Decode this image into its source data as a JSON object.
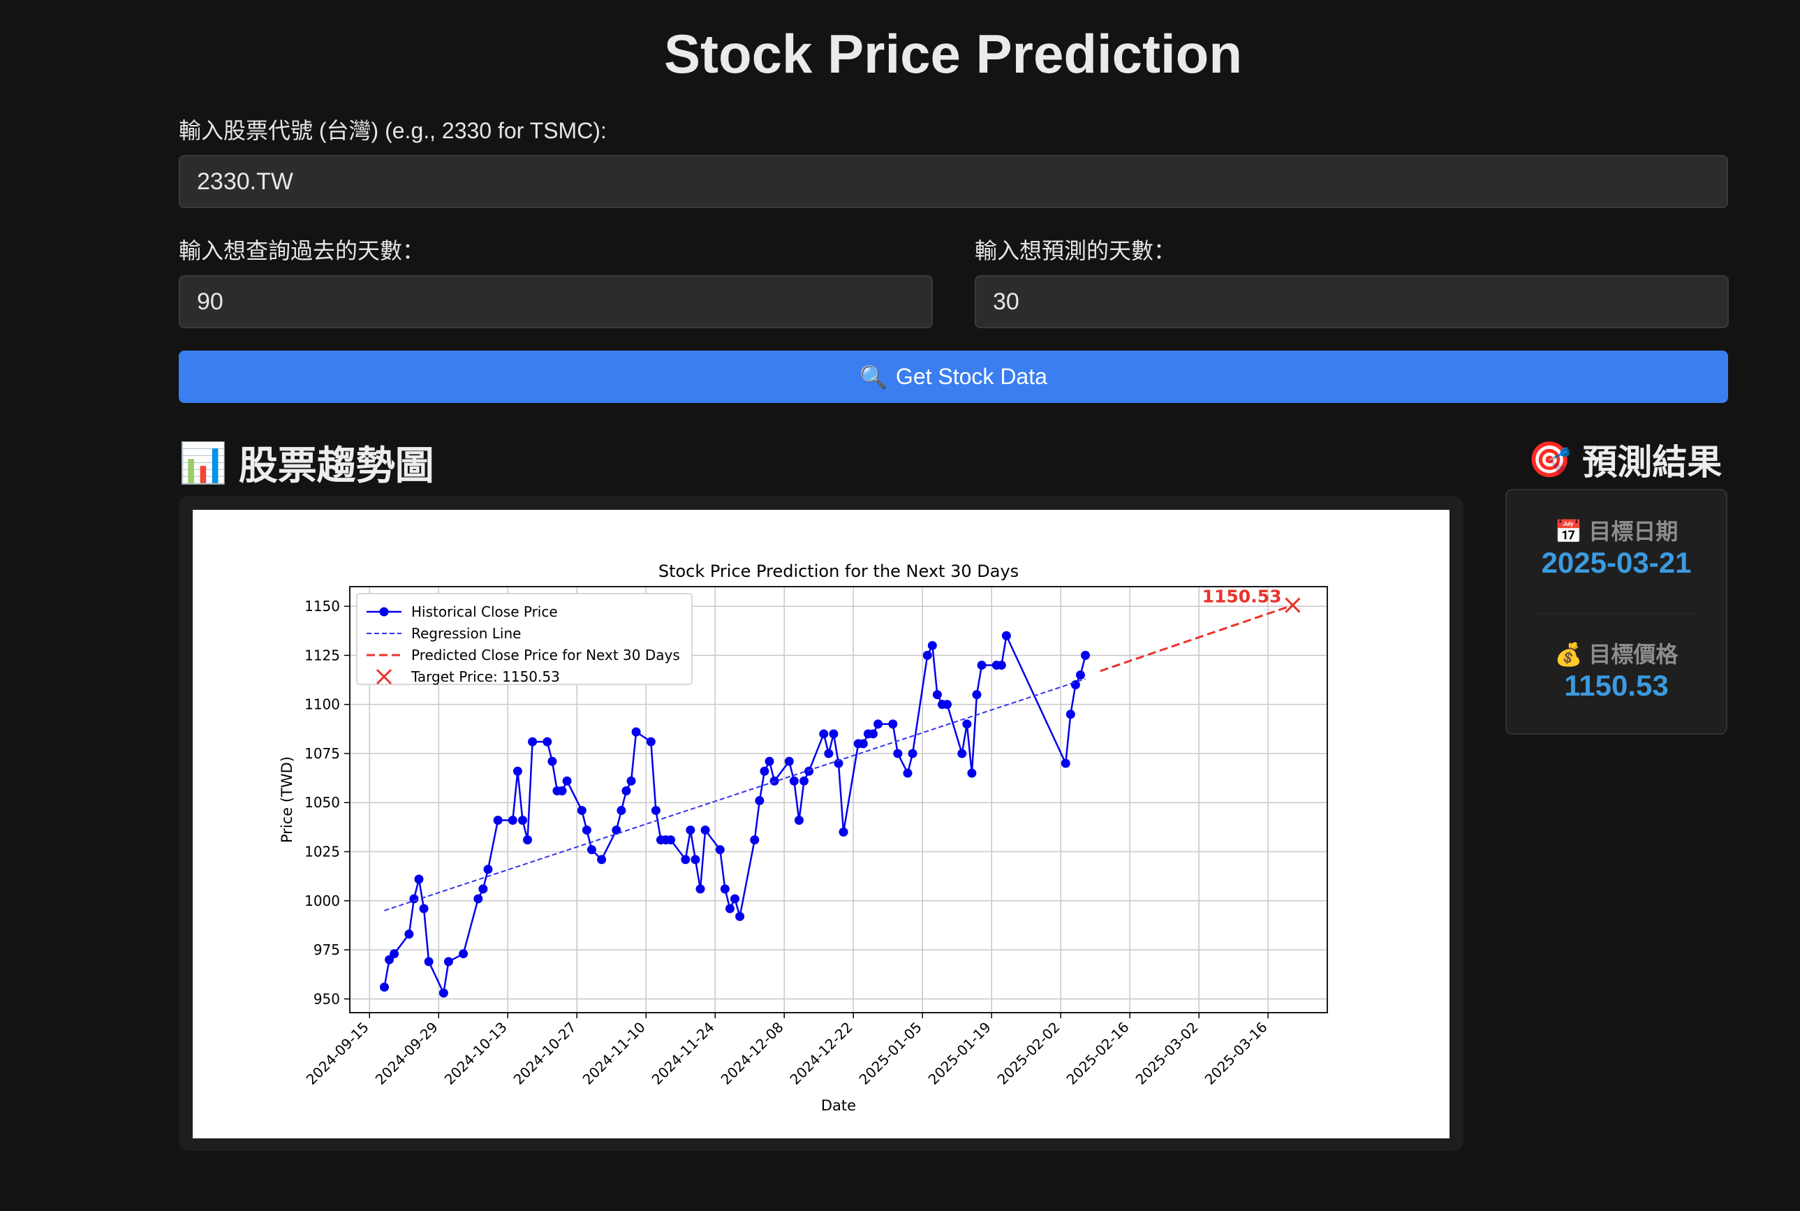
{
  "page": {
    "title": "Stock Price Prediction",
    "ticker_label": "輸入股票代號 (台灣) (e.g., 2330 for TSMC):",
    "ticker_value": "2330.TW",
    "past_days_label": "輸入想查詢過去的天數：",
    "past_days_value": "90",
    "future_days_label": "輸入想預測的天數：",
    "future_days_value": "30",
    "button_icon": "🔍",
    "button_label": "Get Stock Data",
    "chart_heading_icon": "📊",
    "chart_heading": "股票趨勢圖",
    "result_heading_icon": "🎯",
    "result_heading": "預測結果",
    "target_date_icon": "📅",
    "target_date_label": "目標日期",
    "target_date_value": "2025-03-21",
    "target_price_icon": "💰",
    "target_price_label": "目標價格",
    "target_price_value": "1150.53",
    "accent_color": "#3a7ef0",
    "result_value_color": "#3c9be0"
  },
  "chart_data": {
    "type": "line",
    "title": "Stock Price Prediction for the Next 30 Days",
    "xlabel": "Date",
    "ylabel": "Price (TWD)",
    "xlim": [
      "2024-09-11",
      "2025-03-28"
    ],
    "ylim": [
      943,
      1160
    ],
    "x_ticks": [
      "2024-09-15",
      "2024-09-29",
      "2024-10-13",
      "2024-10-27",
      "2024-11-10",
      "2024-11-24",
      "2024-12-08",
      "2024-12-22",
      "2025-01-05",
      "2025-01-19",
      "2025-02-02",
      "2025-02-16",
      "2025-03-02",
      "2025-03-16"
    ],
    "y_ticks": [
      950,
      975,
      1000,
      1025,
      1050,
      1075,
      1100,
      1125,
      1150
    ],
    "grid": true,
    "legend": "top-left",
    "legend_entries": [
      "Historical Close Price",
      "Regression Line",
      "Predicted Close Price for Next 30 Days",
      "Target Price: 1150.53"
    ],
    "series": [
      {
        "name": "Historical Close Price",
        "color": "#0000ee",
        "points": [
          [
            "2024-09-18",
            956
          ],
          [
            "2024-09-19",
            970
          ],
          [
            "2024-09-20",
            973
          ],
          [
            "2024-09-23",
            983
          ],
          [
            "2024-09-24",
            1001
          ],
          [
            "2024-09-25",
            1011
          ],
          [
            "2024-09-26",
            996
          ],
          [
            "2024-09-27",
            969
          ],
          [
            "2024-09-30",
            953
          ],
          [
            "2024-10-01",
            969
          ],
          [
            "2024-10-04",
            973
          ],
          [
            "2024-10-07",
            1001
          ],
          [
            "2024-10-08",
            1006
          ],
          [
            "2024-10-09",
            1016
          ],
          [
            "2024-10-11",
            1041
          ],
          [
            "2024-10-14",
            1041
          ],
          [
            "2024-10-15",
            1066
          ],
          [
            "2024-10-16",
            1041
          ],
          [
            "2024-10-17",
            1031
          ],
          [
            "2024-10-18",
            1081
          ],
          [
            "2024-10-21",
            1081
          ],
          [
            "2024-10-22",
            1071
          ],
          [
            "2024-10-23",
            1056
          ],
          [
            "2024-10-24",
            1056
          ],
          [
            "2024-10-25",
            1061
          ],
          [
            "2024-10-28",
            1046
          ],
          [
            "2024-10-29",
            1036
          ],
          [
            "2024-10-30",
            1026
          ],
          [
            "2024-11-01",
            1021
          ],
          [
            "2024-11-04",
            1036
          ],
          [
            "2024-11-05",
            1046
          ],
          [
            "2024-11-06",
            1056
          ],
          [
            "2024-11-07",
            1061
          ],
          [
            "2024-11-08",
            1086
          ],
          [
            "2024-11-11",
            1081
          ],
          [
            "2024-11-12",
            1046
          ],
          [
            "2024-11-13",
            1031
          ],
          [
            "2024-11-14",
            1031
          ],
          [
            "2024-11-15",
            1031
          ],
          [
            "2024-11-18",
            1021
          ],
          [
            "2024-11-19",
            1036
          ],
          [
            "2024-11-20",
            1021
          ],
          [
            "2024-11-21",
            1006
          ],
          [
            "2024-11-22",
            1036
          ],
          [
            "2024-11-25",
            1026
          ],
          [
            "2024-11-26",
            1006
          ],
          [
            "2024-11-27",
            996
          ],
          [
            "2024-11-28",
            1001
          ],
          [
            "2024-11-29",
            992
          ],
          [
            "2024-12-02",
            1031
          ],
          [
            "2024-12-03",
            1051
          ],
          [
            "2024-12-04",
            1066
          ],
          [
            "2024-12-05",
            1071
          ],
          [
            "2024-12-06",
            1061
          ],
          [
            "2024-12-09",
            1071
          ],
          [
            "2024-12-10",
            1061
          ],
          [
            "2024-12-11",
            1041
          ],
          [
            "2024-12-12",
            1061
          ],
          [
            "2024-12-13",
            1066
          ],
          [
            "2024-12-16",
            1085
          ],
          [
            "2024-12-17",
            1075
          ],
          [
            "2024-12-18",
            1085
          ],
          [
            "2024-12-19",
            1070
          ],
          [
            "2024-12-20",
            1035
          ],
          [
            "2024-12-23",
            1080
          ],
          [
            "2024-12-24",
            1080
          ],
          [
            "2024-12-25",
            1085
          ],
          [
            "2024-12-26",
            1085
          ],
          [
            "2024-12-27",
            1090
          ],
          [
            "2024-12-30",
            1090
          ],
          [
            "2024-12-31",
            1075
          ],
          [
            "2025-01-02",
            1065
          ],
          [
            "2025-01-03",
            1075
          ],
          [
            "2025-01-06",
            1125
          ],
          [
            "2025-01-07",
            1130
          ],
          [
            "2025-01-08",
            1105
          ],
          [
            "2025-01-09",
            1100
          ],
          [
            "2025-01-10",
            1100
          ],
          [
            "2025-01-13",
            1075
          ],
          [
            "2025-01-14",
            1090
          ],
          [
            "2025-01-15",
            1065
          ],
          [
            "2025-01-16",
            1105
          ],
          [
            "2025-01-17",
            1120
          ],
          [
            "2025-01-20",
            1120
          ],
          [
            "2025-01-21",
            1120
          ],
          [
            "2025-01-22",
            1135
          ],
          [
            "2025-02-03",
            1070
          ],
          [
            "2025-02-04",
            1095
          ],
          [
            "2025-02-05",
            1110
          ],
          [
            "2025-02-06",
            1115
          ],
          [
            "2025-02-07",
            1125
          ]
        ]
      },
      {
        "name": "Regression Line",
        "color": "#3333ee",
        "points": [
          [
            "2024-09-18",
            995
          ],
          [
            "2025-02-07",
            1113
          ]
        ]
      },
      {
        "name": "Predicted Close Price for Next 30 Days",
        "color": "#e8332a",
        "points": [
          [
            "2025-02-10",
            1117
          ],
          [
            "2025-03-21",
            1150.53
          ]
        ]
      }
    ],
    "target": {
      "name": "Target Price: 1150.53",
      "date": "2025-03-21",
      "value": 1150.53,
      "label": "1150.53",
      "color": "#e8332a"
    }
  }
}
